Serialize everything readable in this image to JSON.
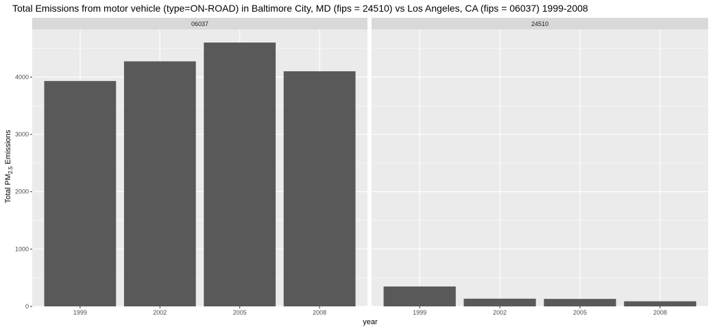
{
  "chart_data": {
    "type": "bar",
    "title": "Total Emissions from motor vehicle (type=ON-ROAD) in Baltimore City, MD (fips = 24510) vs Los Angeles, CA (fips = 06037)  1999-2008",
    "xlabel": "year",
    "ylabel": {
      "prefix": "Total PM",
      "subscript": "2.5",
      "suffix": " Emissions"
    },
    "ylim": [
      0,
      4830
    ],
    "yticks": [
      0,
      1000,
      2000,
      3000,
      4000
    ],
    "categories": [
      "1999",
      "2002",
      "2005",
      "2008"
    ],
    "grid": true,
    "bar_color": "#595959",
    "panel_background": "#ebebeb",
    "strip_background": "#d9d9d9",
    "facets": [
      {
        "name": "06037",
        "values": [
          3931,
          4274,
          4602,
          4101
        ]
      },
      {
        "name": "24510",
        "values": [
          347,
          134,
          130,
          89
        ]
      }
    ]
  }
}
